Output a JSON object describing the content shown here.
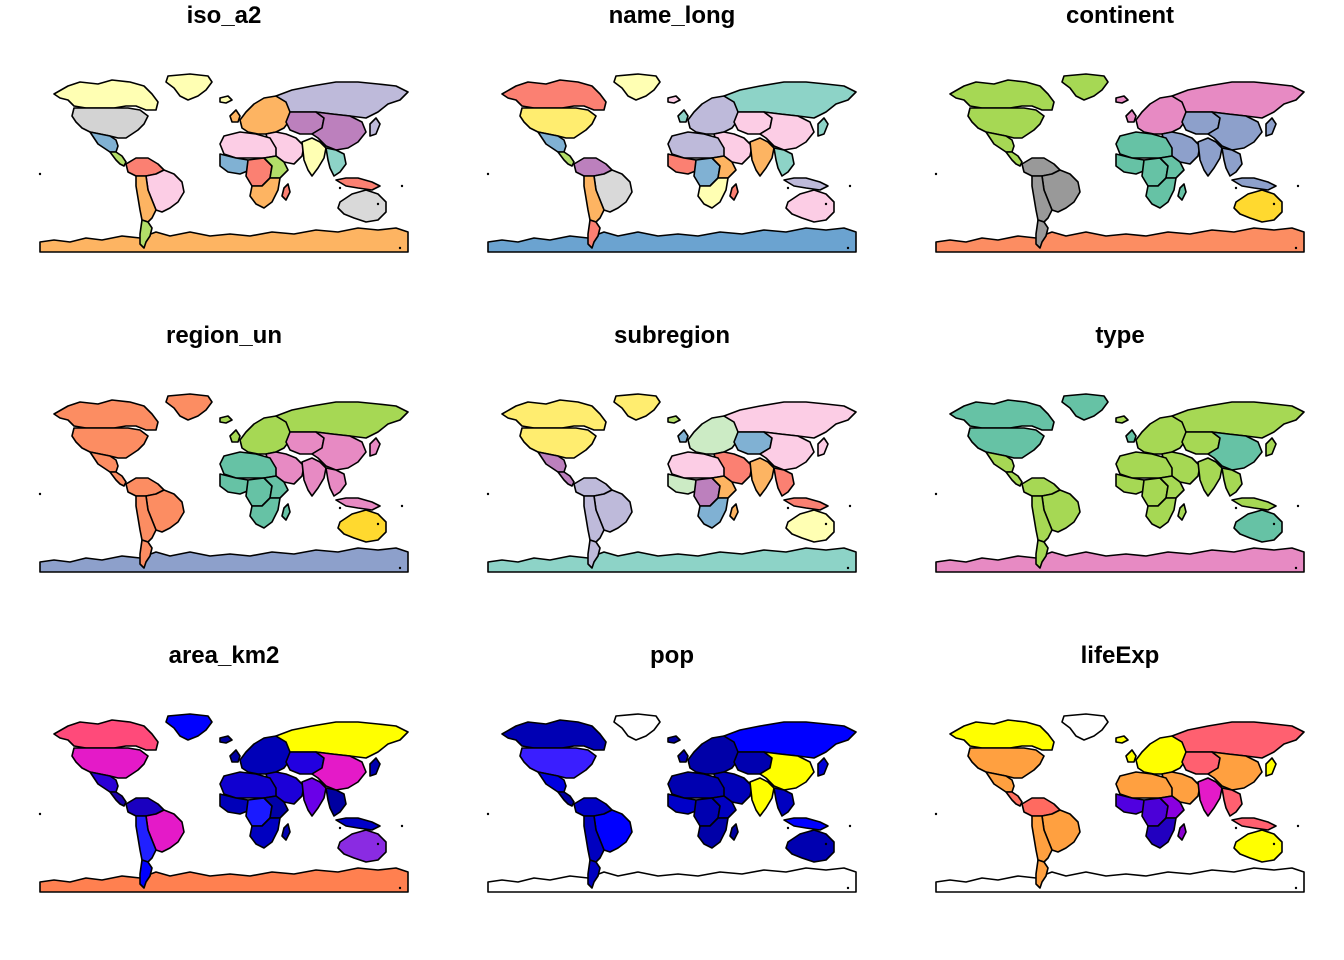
{
  "panels": [
    {
      "title": "iso_a2",
      "fills": {
        "canada": "#FFFFB3",
        "usa": "#D3D3D3",
        "mexico": "#80B1D3",
        "central_america": "#B3DE69",
        "greenland": "#FFFFB3",
        "south_america_north": "#FB8072",
        "brazil": "#FCCDE5",
        "south_america_south": "#FDB462",
        "patagonia": "#B3DE69",
        "europe": "#FDB462",
        "russia": "#BEBADA",
        "middle_east": "#FCCDE5",
        "central_asia": "#BC80BD",
        "china": "#BC80BD",
        "india": "#FFFFB3",
        "se_asia": "#8DD3C7",
        "north_africa": "#FCCDE5",
        "west_africa": "#80B1D3",
        "central_africa": "#FB8072",
        "east_africa": "#B3DE69",
        "southern_africa": "#FDB462",
        "madagascar": "#FB8072",
        "australia": "#D9D9D9",
        "indonesia": "#FB8072",
        "japan": "#BEBADA",
        "antarctica": "#FDB462",
        "iceland": "#FFFFB3",
        "uk": "#FDB462"
      }
    },
    {
      "title": "name_long",
      "fills": {
        "canada": "#FB8072",
        "usa": "#FFED6F",
        "mexico": "#80B1D3",
        "central_america": "#B3DE69",
        "greenland": "#FFFFB3",
        "south_america_north": "#BC80BD",
        "brazil": "#D9D9D9",
        "south_america_south": "#FDB462",
        "patagonia": "#FB8072",
        "europe": "#BEBADA",
        "russia": "#8DD3C7",
        "middle_east": "#FCCDE5",
        "central_asia": "#FCCDE5",
        "china": "#FCCDE5",
        "india": "#FDB462",
        "se_asia": "#8DD3C7",
        "north_africa": "#BEBADA",
        "west_africa": "#FB8072",
        "central_africa": "#80B1D3",
        "east_africa": "#FDB462",
        "southern_africa": "#FFFFB3",
        "madagascar": "#FB8072",
        "australia": "#FCCDE5",
        "indonesia": "#BEBADA",
        "japan": "#8DD3C7",
        "antarctica": "#6BA3D0",
        "iceland": "#FCCDE5",
        "uk": "#8DD3C7"
      }
    },
    {
      "title": "continent",
      "fills": {
        "canada": "#A6D854",
        "usa": "#A6D854",
        "mexico": "#A6D854",
        "central_america": "#A6D854",
        "greenland": "#A6D854",
        "south_america_north": "#999999",
        "brazil": "#999999",
        "south_america_south": "#999999",
        "patagonia": "#999999",
        "europe": "#E78AC3",
        "russia": "#E78AC3",
        "middle_east": "#8DA0CB",
        "central_asia": "#8DA0CB",
        "china": "#8DA0CB",
        "india": "#8DA0CB",
        "se_asia": "#8DA0CB",
        "north_africa": "#66C2A5",
        "west_africa": "#66C2A5",
        "central_africa": "#66C2A5",
        "east_africa": "#66C2A5",
        "southern_africa": "#66C2A5",
        "madagascar": "#66C2A5",
        "australia": "#FFD92F",
        "indonesia": "#8DA0CB",
        "japan": "#8DA0CB",
        "antarctica": "#FC8D62",
        "iceland": "#E78AC3",
        "uk": "#E78AC3"
      }
    },
    {
      "title": "region_un",
      "fills": {
        "canada": "#FC8D62",
        "usa": "#FC8D62",
        "mexico": "#FC8D62",
        "central_america": "#FC8D62",
        "greenland": "#FC8D62",
        "south_america_north": "#FC8D62",
        "brazil": "#FC8D62",
        "south_america_south": "#FC8D62",
        "patagonia": "#FC8D62",
        "europe": "#A6D854",
        "russia": "#A6D854",
        "middle_east": "#E78AC3",
        "central_asia": "#E78AC3",
        "china": "#E78AC3",
        "india": "#E78AC3",
        "se_asia": "#E78AC3",
        "north_africa": "#66C2A5",
        "west_africa": "#66C2A5",
        "central_africa": "#66C2A5",
        "east_africa": "#66C2A5",
        "southern_africa": "#66C2A5",
        "madagascar": "#66C2A5",
        "australia": "#FFD92F",
        "indonesia": "#E78AC3",
        "japan": "#E78AC3",
        "antarctica": "#8DA0CB",
        "iceland": "#A6D854",
        "uk": "#A6D854"
      }
    },
    {
      "title": "subregion",
      "fills": {
        "canada": "#FFED6F",
        "usa": "#FFED6F",
        "mexico": "#BC80BD",
        "central_america": "#BC80BD",
        "greenland": "#FFED6F",
        "south_america_north": "#BEBADA",
        "brazil": "#BEBADA",
        "south_america_south": "#BEBADA",
        "patagonia": "#BEBADA",
        "europe": "#CCEBC5",
        "russia": "#FCCDE5",
        "middle_east": "#FB8072",
        "central_asia": "#80B1D3",
        "china": "#FCCDE5",
        "india": "#FDB462",
        "se_asia": "#FB8072",
        "north_africa": "#FCCDE5",
        "west_africa": "#CCEBC5",
        "central_africa": "#BC80BD",
        "east_africa": "#FDB462",
        "southern_africa": "#80B1D3",
        "madagascar": "#FDB462",
        "australia": "#FFFFB3",
        "indonesia": "#FB8072",
        "japan": "#FCCDE5",
        "antarctica": "#8DD3C7",
        "iceland": "#B3DE69",
        "uk": "#80B1D3"
      }
    },
    {
      "title": "type",
      "fills": {
        "canada": "#66C2A5",
        "usa": "#66C2A5",
        "mexico": "#A6D854",
        "central_america": "#A6D854",
        "greenland": "#66C2A5",
        "south_america_north": "#A6D854",
        "brazil": "#A6D854",
        "south_america_south": "#A6D854",
        "patagonia": "#A6D854",
        "europe": "#A6D854",
        "russia": "#A6D854",
        "middle_east": "#A6D854",
        "central_asia": "#A6D854",
        "china": "#66C2A5",
        "india": "#A6D854",
        "se_asia": "#A6D854",
        "north_africa": "#A6D854",
        "west_africa": "#A6D854",
        "central_africa": "#A6D854",
        "east_africa": "#A6D854",
        "southern_africa": "#A6D854",
        "madagascar": "#A6D854",
        "australia": "#66C2A5",
        "indonesia": "#A6D854",
        "japan": "#A6D854",
        "antarctica": "#E78AC3",
        "iceland": "#A6D854",
        "uk": "#66C2A5"
      }
    },
    {
      "title": "area_km2",
      "fills": {
        "canada": "#FF4A7A",
        "usa": "#E41AC8",
        "mexico": "#2B00D6",
        "central_america": "#1A00A8",
        "greenland": "#0000FF",
        "south_america_north": "#1A00C0",
        "brazil": "#E41AC8",
        "south_america_south": "#2020FF",
        "patagonia": "#0000FF",
        "europe": "#0000B8",
        "russia": "#FFFF00",
        "middle_east": "#1C00D8",
        "central_asia": "#2200E0",
        "china": "#E41AC8",
        "india": "#6A00E8",
        "se_asia": "#0000A0",
        "north_africa": "#1000D0",
        "west_africa": "#0000B8",
        "central_africa": "#1A1AFF",
        "east_africa": "#0000A8",
        "southern_africa": "#0000C0",
        "madagascar": "#0000B0",
        "australia": "#8A2BE2",
        "indonesia": "#0000C8",
        "japan": "#0000B0",
        "antarctica": "#FF8050",
        "iceland": "#0000A0",
        "uk": "#0000A0"
      }
    },
    {
      "title": "pop",
      "fills": {
        "canada": "#0000B4",
        "usa": "#3A1EFF",
        "mexico": "#0000E0",
        "central_america": "#0000A0",
        "greenland": "#FFFFFF",
        "south_america_north": "#0000C8",
        "brazil": "#0000FF",
        "south_america_south": "#0000C0",
        "patagonia": "#0000C0",
        "europe": "#0000A8",
        "russia": "#0000FF",
        "middle_east": "#0000B8",
        "central_asia": "#0000B0",
        "china": "#FFFF00",
        "india": "#FFFF00",
        "se_asia": "#0000C0",
        "north_africa": "#0000B0",
        "west_africa": "#0000C8",
        "central_africa": "#0000B0",
        "east_africa": "#0000C0",
        "southern_africa": "#0000A8",
        "madagascar": "#0000A0",
        "australia": "#0000B0",
        "indonesia": "#0000FF",
        "japan": "#0000D8",
        "antarctica": "#FFFFFF",
        "iceland": "#0000A0",
        "uk": "#0000B0"
      }
    },
    {
      "title": "lifeExp",
      "fills": {
        "canada": "#FFFF00",
        "usa": "#FFA040",
        "mexico": "#FFA040",
        "central_america": "#FF7060",
        "greenland": "#FFFFFF",
        "south_america_north": "#FF6A60",
        "brazil": "#FFA040",
        "south_america_south": "#FFA040",
        "patagonia": "#FFA040",
        "europe": "#FFFF00",
        "russia": "#FF6070",
        "middle_east": "#FFA040",
        "central_asia": "#FF6070",
        "china": "#FFA040",
        "india": "#E41AC8",
        "se_asia": "#FF6070",
        "north_africa": "#FFA040",
        "west_africa": "#5000E0",
        "central_africa": "#4B00D8",
        "east_africa": "#8A00E0",
        "southern_africa": "#2200C0",
        "madagascar": "#8A00D0",
        "australia": "#FFFF00",
        "indonesia": "#FF6070",
        "japan": "#FFFF00",
        "antarctica": "#FFFFFF",
        "iceland": "#FFFF00",
        "uk": "#FFFF00"
      }
    }
  ]
}
